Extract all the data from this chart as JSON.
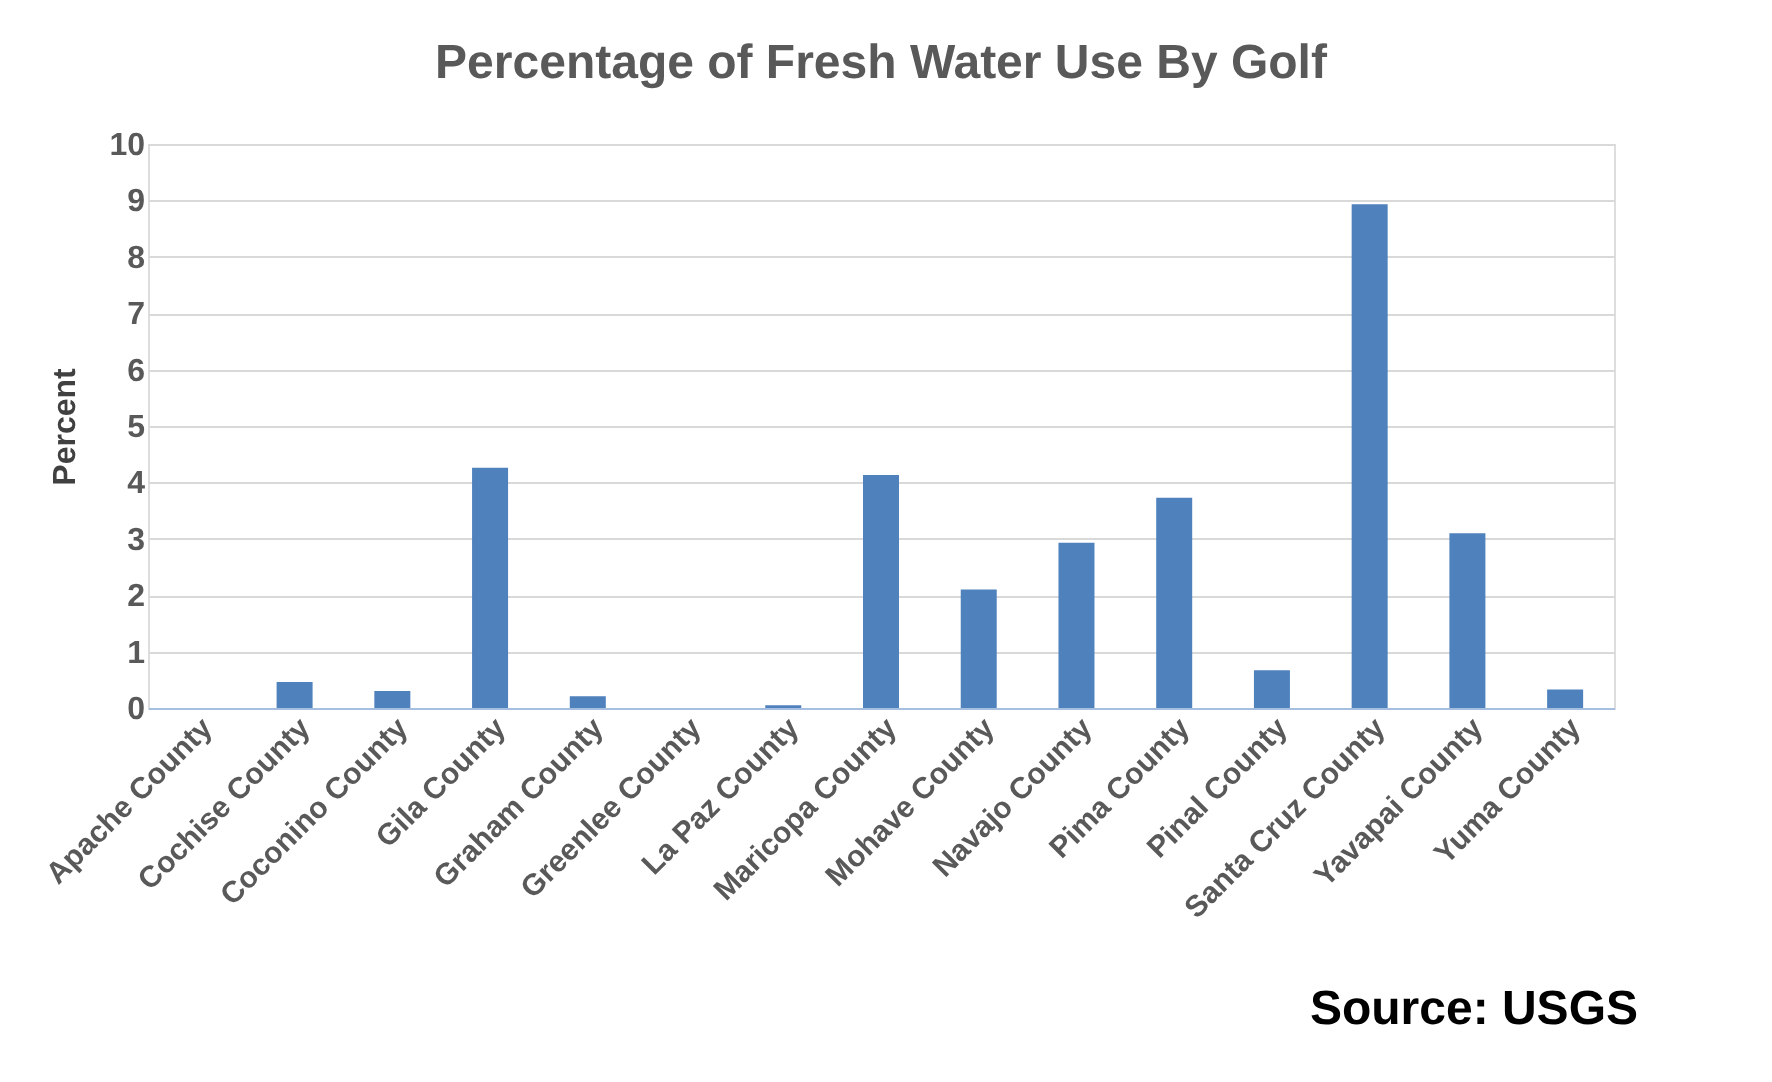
{
  "chart_data": {
    "type": "bar",
    "title": "Percentage of Fresh Water Use By Golf",
    "ylabel": "Percent",
    "categories": [
      "Apache County",
      "Cochise County",
      "Coconino County",
      "Gila County",
      "Graham County",
      "Greenlee County",
      "La Paz County",
      "Maricopa County",
      "Mohave County",
      "Navajo County",
      "Pima County",
      "Pinal County",
      "Santa Cruz County",
      "Yavapai County",
      "Yuma County"
    ],
    "values": [
      0,
      0.46,
      0.3,
      4.26,
      0.21,
      0,
      0.05,
      4.13,
      2.1,
      2.93,
      3.73,
      0.67,
      8.93,
      3.1,
      0.33
    ],
    "color": "#4f81bd",
    "ylim": [
      0,
      10
    ],
    "yticks": [
      0,
      1,
      2,
      3,
      4,
      5,
      6,
      7,
      8,
      9,
      10
    ],
    "grid": "y",
    "annotations": [
      "Source: USGS"
    ]
  }
}
